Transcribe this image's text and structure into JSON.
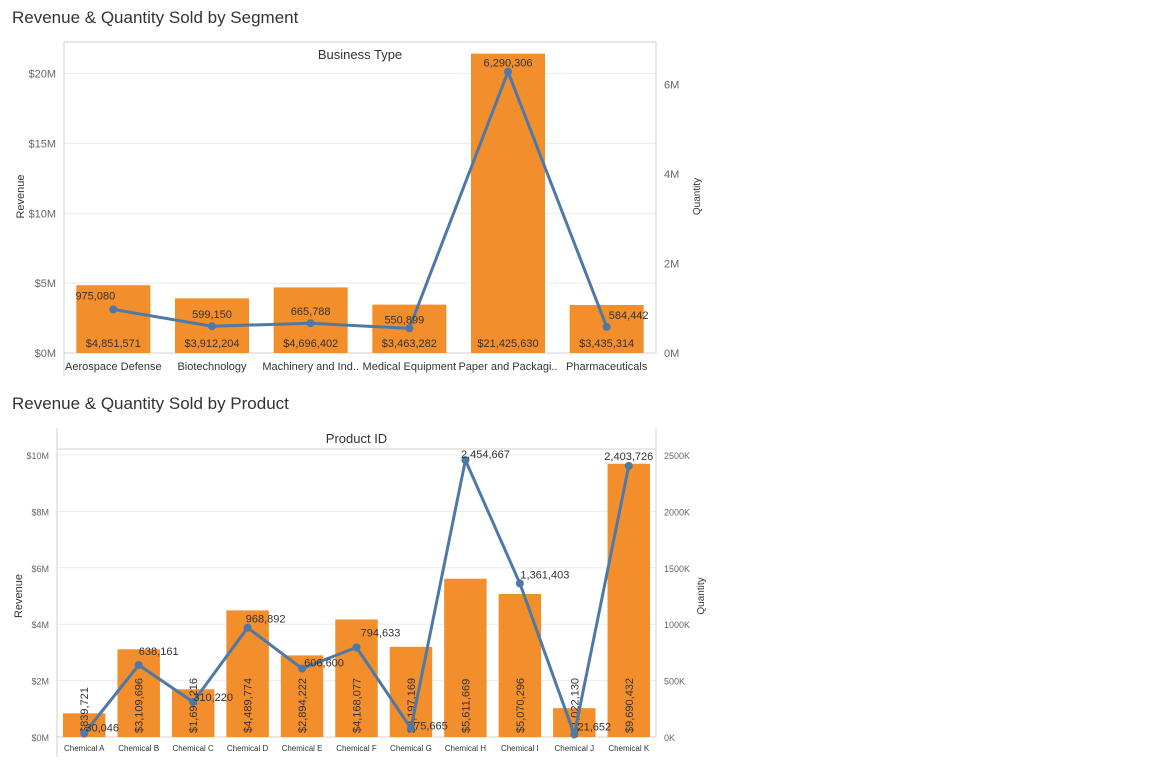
{
  "colors": {
    "bar": "#f28e2b",
    "line": "#4e79a7",
    "grid": "#ebebeb",
    "axis": "#d0d0d0",
    "text": "#333333",
    "muted": "#666666"
  },
  "chart_data": [
    {
      "type": "bar",
      "title": "Revenue & Quantity Sold by Segment",
      "header": "Business Type",
      "categories": [
        "Aerospace Defense",
        "Biotechnology",
        "Machinery and Ind..",
        "Medical Equipment",
        "Paper and Packagi..",
        "Pharmaceuticals"
      ],
      "series": [
        {
          "name": "Revenue",
          "kind": "bar",
          "axis": "left",
          "values": [
            4851571,
            3912204,
            4696402,
            3463282,
            21425630,
            3435314
          ],
          "labels": [
            "$4,851,571",
            "$3,912,204",
            "$4,696,402",
            "$3,463,282",
            "$21,425,630",
            "$3,435,314"
          ]
        },
        {
          "name": "Quantity",
          "kind": "line",
          "axis": "right",
          "values": [
            975080,
            599150,
            665788,
            550899,
            6290306,
            584442
          ],
          "labels": [
            "975,080",
            "599,150",
            "665,788",
            "550,899",
            "6,290,306",
            "584,442"
          ]
        }
      ],
      "ylabel": "Revenue",
      "ylabel_right": "Quantity",
      "ylim": [
        0,
        22400000
      ],
      "ylim_right": [
        0,
        7000000
      ],
      "yticks": [
        "$0M",
        "$5M",
        "$10M",
        "$15M",
        "$20M"
      ],
      "yticks_right": [
        "0M",
        "2M",
        "4M",
        "6M"
      ],
      "bar_label_orientation": "horizontal",
      "grid": true
    },
    {
      "type": "bar",
      "title": "Revenue & Quantity Sold by Product",
      "header": "Product ID",
      "categories": [
        "Chemical A",
        "Chemical B",
        "Chemical C",
        "Chemical D",
        "Chemical E",
        "Chemical F",
        "Chemical G",
        "Chemical H",
        "Chemical I",
        "Chemical J",
        "Chemical K"
      ],
      "series": [
        {
          "name": "Revenue",
          "kind": "bar",
          "axis": "left",
          "values": [
            839721,
            3109696,
            1691216,
            4489774,
            2894222,
            4168077,
            3197169,
            5611669,
            5070296,
            1022130,
            9690432
          ],
          "labels": [
            "$839,721",
            "$3,109,696",
            "$1,691,216",
            "$4,489,774",
            "$2,894,222",
            "$4,168,077",
            "$3,197,169",
            "$5,611,669",
            "$5,070,296",
            "$1,022,130",
            "$9,690,432"
          ]
        },
        {
          "name": "Quantity",
          "kind": "line",
          "axis": "right",
          "values": [
            30046,
            638161,
            310220,
            968892,
            606600,
            794633,
            75665,
            2454667,
            1361403,
            21652,
            2403726
          ],
          "labels": [
            "30,046",
            "638,161",
            "310,220",
            "968,892",
            "606,600",
            "794,633",
            "75,665",
            "2,454,667",
            "1,361,403",
            "21,652",
            "2,403,726"
          ]
        }
      ],
      "ylabel": "Revenue",
      "ylabel_right": "Quantity",
      "ylim": [
        0,
        10000000
      ],
      "ylim_right": [
        0,
        2500000
      ],
      "yticks": [
        "$0M",
        "$2M",
        "$4M",
        "$6M",
        "$8M",
        "$10M"
      ],
      "yticks_right": [
        "0K",
        "500K",
        "1000K",
        "1500K",
        "2000K",
        "2500K"
      ],
      "bar_label_orientation": "vertical",
      "grid": true
    }
  ]
}
